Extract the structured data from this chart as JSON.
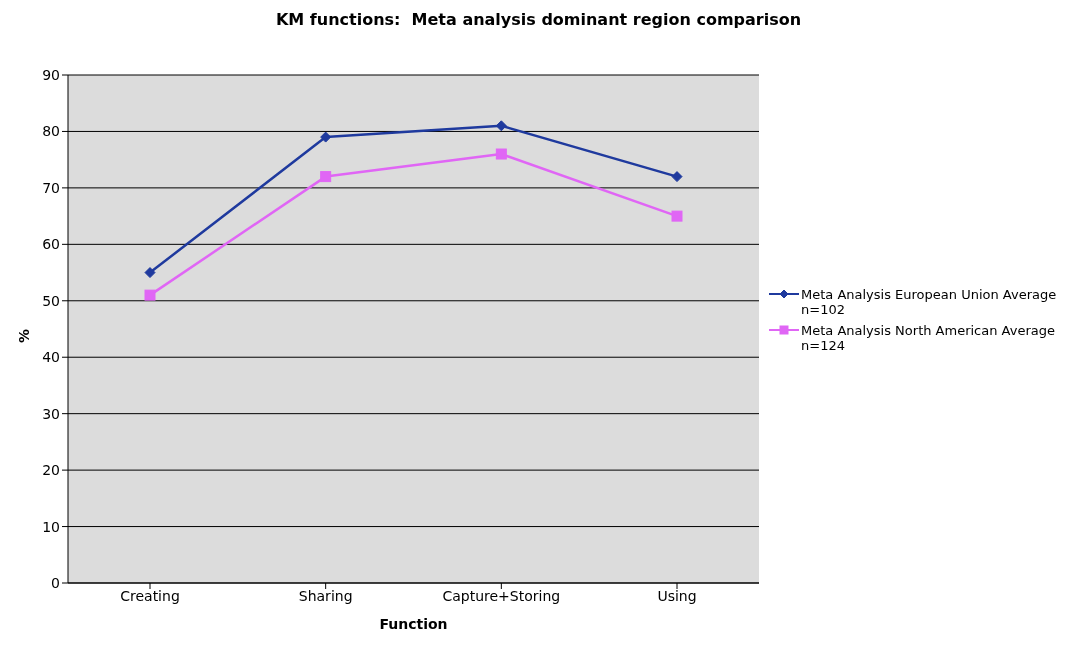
{
  "chart_data": {
    "type": "line",
    "title": "KM functions:  Meta analysis dominant region comparison",
    "xlabel": "Function",
    "ylabel": "%",
    "categories": [
      "Creating",
      "Sharing",
      "Capture+Storing",
      "Using"
    ],
    "series": [
      {
        "name": "Meta Analysis European Union Average n=102",
        "color": "#1f3a9e",
        "values": [
          55,
          79,
          81,
          72
        ],
        "marker": "diamond"
      },
      {
        "name": "Meta Analysis North American Average n=124",
        "color": "#e066f5",
        "values": [
          51,
          72,
          76,
          65
        ],
        "marker": "square"
      }
    ],
    "ylim": [
      0,
      90
    ],
    "yticks": [
      0,
      10,
      20,
      30,
      40,
      50,
      60,
      70,
      80,
      90
    ],
    "grid": "y",
    "legend": "right"
  }
}
